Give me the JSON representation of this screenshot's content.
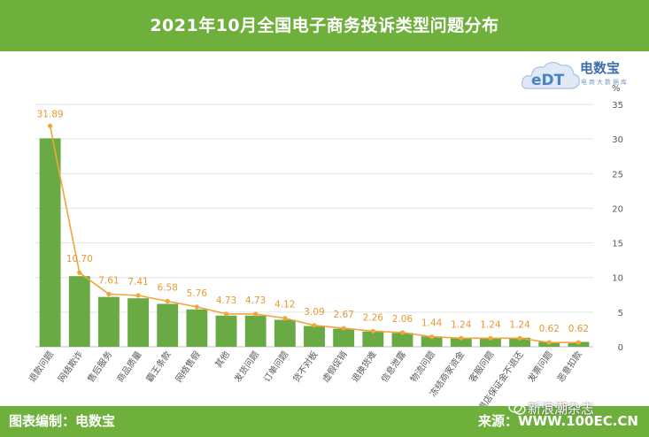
{
  "header": {
    "title": "2021年10月全国电子商务投诉类型问题分布"
  },
  "logo": {
    "name": "电数宝",
    "sub": "电商大数据库",
    "mark": "eDT"
  },
  "footer": {
    "credit": "图表编制：电数宝",
    "source": "来源：WWW.100EC.CN",
    "watermark": "新浪潮杂志"
  },
  "colors": {
    "bar": "#6aaa44",
    "line": "#f0a63b",
    "header": "#6fb03d"
  },
  "chart_data": {
    "type": "bar",
    "title": "2021年10月全国电子商务投诉类型问题分布",
    "unit": "%",
    "ylim": [
      0,
      35
    ],
    "yticks": [
      0,
      5,
      10,
      15,
      20,
      25,
      30,
      35
    ],
    "categories": [
      "退款问题",
      "网络欺诈",
      "售后服务",
      "商品质量",
      "霸王条款",
      "网络售假",
      "其他",
      "发货问题",
      "订单问题",
      "货不对板",
      "虚假促销",
      "退换货难",
      "信息泄露",
      "物流问题",
      "冻结商家资金",
      "客服问题",
      "退店保证金不退还",
      "发票问题",
      "恶意扣款"
    ],
    "values": [
      30.1,
      10.2,
      7.2,
      7.0,
      6.2,
      5.4,
      4.5,
      4.5,
      3.9,
      3.0,
      2.6,
      2.2,
      2.0,
      1.5,
      1.3,
      1.3,
      1.3,
      0.7,
      0.7
    ],
    "line_values": [
      31.89,
      10.7,
      7.61,
      7.41,
      6.58,
      5.76,
      4.73,
      4.73,
      4.12,
      3.09,
      2.67,
      2.26,
      2.06,
      1.44,
      1.24,
      1.24,
      1.24,
      0.62,
      0.62
    ],
    "data_labels": [
      "31.89",
      "10.70",
      "7.61",
      "7.41",
      "6.58",
      "5.76",
      "4.73",
      "4.73",
      "4.12",
      "3.09",
      "2.67",
      "2.26",
      "2.06",
      "1.44",
      "1.24",
      "1.24",
      "1.24",
      "0.62",
      "0.62"
    ],
    "grid": true,
    "y_axis_side": "right"
  }
}
